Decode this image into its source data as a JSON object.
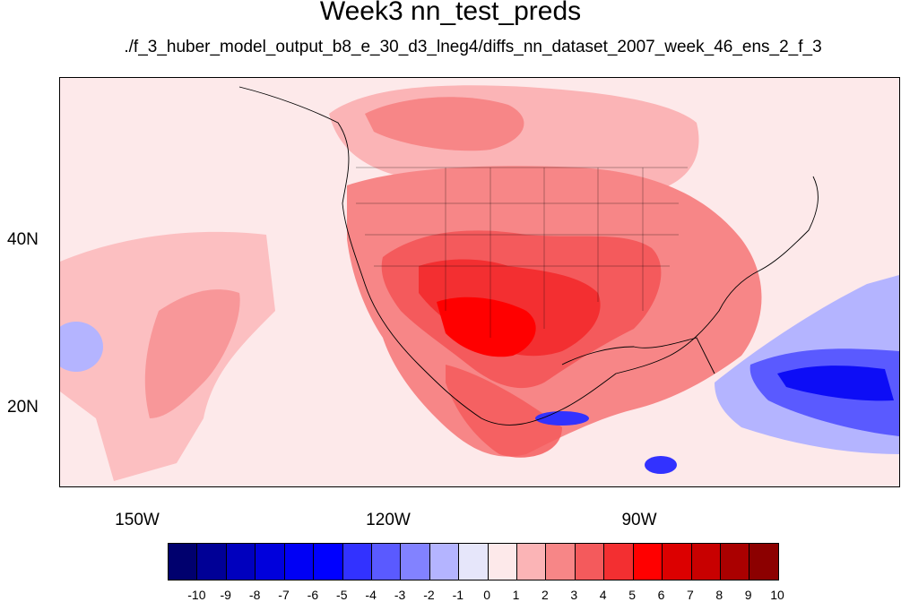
{
  "title": "Week3 nn_test_preds",
  "subtitle": "./f_3_huber_model_output_b8_e_30_d3_lneg4/diffs_nn_dataset_2007_week_46_ens_2_f_3",
  "lon_labels": [
    "150W",
    "120W",
    "90W"
  ],
  "lat_labels": [
    "40N",
    "20N"
  ],
  "colorbar": {
    "labels": [
      "-10",
      "-9",
      "-8",
      "-7",
      "-6",
      "-5",
      "-4",
      "-3",
      "-2",
      "-1",
      "0",
      "1",
      "2",
      "3",
      "4",
      "5",
      "6",
      "7",
      "8",
      "9",
      "10"
    ],
    "colors": [
      "#00006e",
      "#000096",
      "#0000be",
      "#0000dc",
      "#0000f5",
      "#0000ff",
      "#3232ff",
      "#5a5aff",
      "#8282ff",
      "#b4b4ff",
      "#e6e6fa",
      "#fde9ea",
      "#fbb4b6",
      "#f78687",
      "#f45a5c",
      "#f32f31",
      "#ff0000",
      "#dc0000",
      "#c80000",
      "#aa0000",
      "#8c0000"
    ]
  }
}
